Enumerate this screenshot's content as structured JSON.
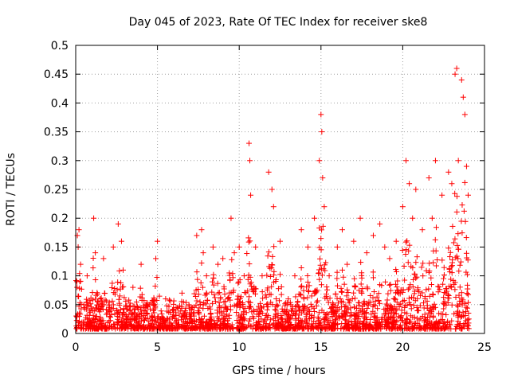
{
  "chart_data": {
    "type": "scatter",
    "title": "Day 045 of 2023, Rate Of TEC Index for receiver ske8",
    "xlabel": "GPS time / hours",
    "ylabel": "ROTI / TECUs",
    "xlim": [
      0,
      25
    ],
    "ylim": [
      0,
      0.5
    ],
    "xticks": [
      0,
      5,
      10,
      15,
      20,
      25
    ],
    "xtick_labels": [
      "0",
      "5",
      "10",
      "15",
      "20",
      "25"
    ],
    "yticks": [
      0,
      0.05,
      0.1,
      0.15,
      0.2,
      0.25,
      0.3,
      0.35,
      0.4,
      0.45,
      0.5
    ],
    "ytick_labels": [
      "0",
      "0.05",
      "0.1",
      "0.15",
      "0.2",
      "0.25",
      "0.3",
      "0.35",
      "0.4",
      "0.45",
      "0.5"
    ],
    "grid": true,
    "marker": "+",
    "color": "#ff0000",
    "series": [
      {
        "name": "ROTI",
        "x": [
          0.05,
          0.1,
          0.15,
          0.2,
          0.25,
          0.3,
          0.5,
          0.7,
          1.0,
          1.1,
          1.2,
          1.5,
          1.7,
          2.0,
          2.3,
          2.6,
          2.8,
          2.9,
          3.1,
          3.5,
          4.0,
          4.5,
          4.9,
          5.0,
          5.5,
          6.0,
          6.5,
          7.0,
          7.4,
          7.7,
          7.8,
          8.0,
          8.4,
          8.7,
          9.0,
          9.3,
          9.5,
          9.7,
          10.0,
          10.3,
          10.6,
          10.65,
          10.7,
          11.0,
          11.4,
          11.8,
          12.0,
          12.1,
          12.5,
          13.0,
          13.4,
          13.8,
          14.2,
          14.6,
          14.9,
          15.0,
          15.05,
          15.1,
          15.2,
          15.5,
          16.0,
          16.3,
          16.6,
          17.0,
          17.4,
          17.8,
          18.2,
          18.6,
          18.9,
          19.2,
          19.6,
          20.0,
          20.2,
          20.4,
          20.6,
          20.8,
          21.2,
          21.6,
          21.8,
          22.0,
          22.4,
          22.8,
          23.0,
          23.2,
          23.3,
          23.4,
          23.6,
          23.7,
          23.8,
          23.9,
          24.0
        ],
        "y": [
          0.03,
          0.17,
          0.15,
          0.18,
          0.09,
          0.12,
          0.05,
          0.1,
          0.02,
          0.2,
          0.14,
          0.06,
          0.13,
          0.04,
          0.15,
          0.19,
          0.16,
          0.11,
          0.03,
          0.08,
          0.12,
          0.05,
          0.13,
          0.16,
          0.06,
          0.04,
          0.07,
          0.03,
          0.17,
          0.18,
          0.14,
          0.1,
          0.15,
          0.12,
          0.13,
          0.06,
          0.2,
          0.14,
          0.15,
          0.1,
          0.33,
          0.3,
          0.24,
          0.15,
          0.1,
          0.28,
          0.25,
          0.22,
          0.16,
          0.06,
          0.1,
          0.18,
          0.15,
          0.2,
          0.3,
          0.38,
          0.35,
          0.27,
          0.22,
          0.1,
          0.15,
          0.18,
          0.12,
          0.16,
          0.2,
          0.14,
          0.17,
          0.19,
          0.15,
          0.13,
          0.16,
          0.22,
          0.3,
          0.26,
          0.2,
          0.25,
          0.18,
          0.27,
          0.2,
          0.3,
          0.24,
          0.28,
          0.26,
          0.45,
          0.46,
          0.3,
          0.44,
          0.41,
          0.38,
          0.29,
          0.24
        ]
      }
    ]
  }
}
